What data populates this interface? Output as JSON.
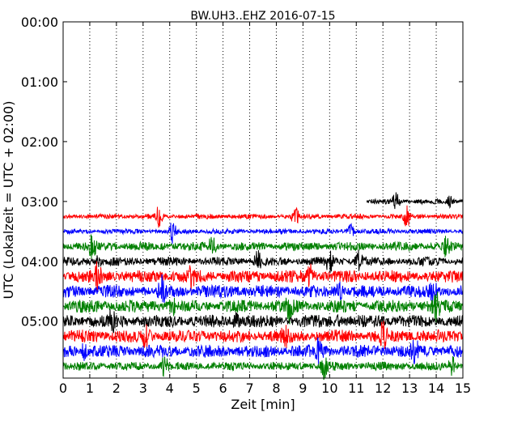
{
  "chart_data": {
    "type": "line",
    "title": "BW.UH3..EHZ 2016-07-15",
    "xlabel": "Zeit  [min]",
    "ylabel": "UTC (Lokalzeit = UTC + 02:00)",
    "xlim": [
      0,
      15
    ],
    "ylim_hours": [
      5.95,
      0
    ],
    "x_ticks": [
      0,
      1,
      2,
      3,
      4,
      5,
      6,
      7,
      8,
      9,
      10,
      11,
      12,
      13,
      14,
      15
    ],
    "x_tick_labels": [
      "0",
      "1",
      "2",
      "3",
      "4",
      "5",
      "6",
      "7",
      "8",
      "9",
      "10",
      "11",
      "12",
      "13",
      "14",
      "15"
    ],
    "y_ticks_hours": [
      0,
      1,
      2,
      3,
      4,
      5
    ],
    "y_tick_labels": [
      "00:00",
      "01:00",
      "02:00",
      "03:00",
      "04:00",
      "05:00"
    ],
    "grid": "vertical dotted",
    "legend": "none",
    "series": [
      {
        "color": "#000000",
        "start": "03:00",
        "x_range": [
          11.4,
          15
        ],
        "level": "low",
        "spikes": [
          12.5,
          14.5
        ]
      },
      {
        "color": "#ff0000",
        "start": "03:15",
        "x_range": [
          0,
          15
        ],
        "level": "low",
        "spikes": [
          3.6,
          8.7,
          12.9
        ]
      },
      {
        "color": "#0000ff",
        "start": "03:30",
        "x_range": [
          0,
          15
        ],
        "level": "low",
        "spikes": [
          4.1,
          10.8
        ]
      },
      {
        "color": "#008000",
        "start": "03:45",
        "x_range": [
          0,
          15
        ],
        "level": "medium",
        "spikes": [
          1.1,
          5.6,
          14.4
        ]
      },
      {
        "color": "#000000",
        "start": "04:00",
        "x_range": [
          0,
          15
        ],
        "level": "medium",
        "spikes": [
          1.3,
          7.3,
          10.0,
          11.1
        ]
      },
      {
        "color": "#ff0000",
        "start": "04:15",
        "x_range": [
          0,
          15
        ],
        "level": "high",
        "spikes": [
          1.3,
          4.8,
          9.3
        ]
      },
      {
        "color": "#0000ff",
        "start": "04:30",
        "x_range": [
          0,
          15
        ],
        "level": "high",
        "spikes": [
          3.7,
          10.4,
          13.9
        ]
      },
      {
        "color": "#008000",
        "start": "04:45",
        "x_range": [
          0,
          15
        ],
        "level": "high",
        "spikes": [
          4.1,
          8.5,
          14.0
        ]
      },
      {
        "color": "#000000",
        "start": "05:00",
        "x_range": [
          0,
          15
        ],
        "level": "high",
        "spikes": [
          1.8,
          6.5,
          10.3
        ]
      },
      {
        "color": "#ff0000",
        "start": "05:15",
        "x_range": [
          0,
          15
        ],
        "level": "high",
        "spikes": [
          3.1,
          8.3,
          12.0
        ]
      },
      {
        "color": "#0000ff",
        "start": "05:30",
        "x_range": [
          0,
          15
        ],
        "level": "high",
        "spikes": [
          0.8,
          9.6,
          13.2
        ]
      },
      {
        "color": "#008000",
        "start": "05:45",
        "x_range": [
          0,
          15
        ],
        "level": "medium",
        "spikes": [
          3.8,
          9.8,
          14.6
        ]
      }
    ]
  }
}
